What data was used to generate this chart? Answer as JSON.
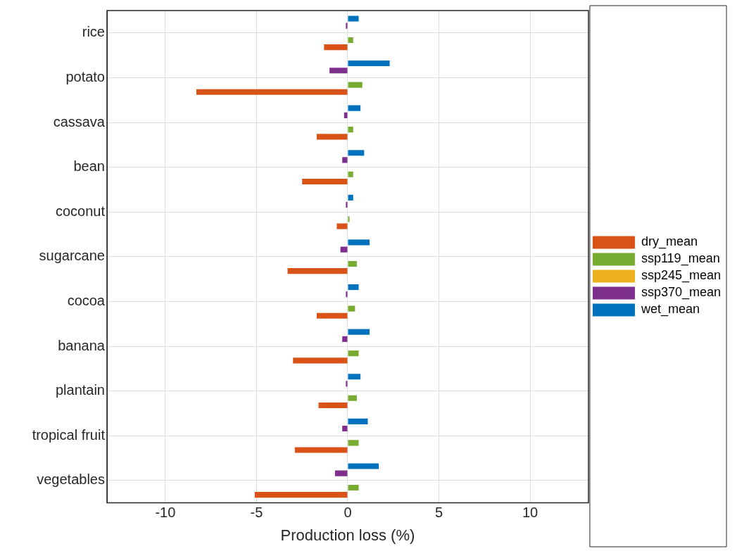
{
  "chart_data": {
    "type": "bar",
    "orientation": "horizontal",
    "xlabel": "Production loss (%)",
    "categories": [
      "rice",
      "potato",
      "cassava",
      "bean",
      "coconut",
      "sugarcane",
      "cocoa",
      "banana",
      "plantain",
      "tropical fruit",
      "vegetables"
    ],
    "series": [
      {
        "name": "dry_mean",
        "color": "#d95319",
        "values": [
          -1.3,
          -8.3,
          -1.7,
          -2.5,
          -0.6,
          -3.3,
          -1.7,
          -3.0,
          -1.6,
          -2.9,
          -5.1
        ]
      },
      {
        "name": "ssp119_mean",
        "color": "#77ac30",
        "values": [
          0.3,
          0.8,
          0.3,
          0.3,
          0.1,
          0.5,
          0.4,
          0.6,
          0.5,
          0.6,
          0.6
        ]
      },
      {
        "name": "ssp245_mean",
        "color": "#edb120",
        "values": [
          0,
          0,
          0,
          0,
          0,
          0,
          0,
          0,
          0,
          0,
          0
        ]
      },
      {
        "name": "ssp370_mean",
        "color": "#7e2f8e",
        "values": [
          -0.1,
          -1.0,
          -0.2,
          -0.3,
          -0.1,
          -0.4,
          -0.1,
          -0.3,
          -0.1,
          -0.3,
          -0.7
        ]
      },
      {
        "name": "wet_mean",
        "color": "#0072bd",
        "values": [
          0.6,
          2.3,
          0.7,
          0.9,
          0.3,
          1.2,
          0.6,
          1.2,
          0.7,
          1.1,
          1.7
        ]
      }
    ],
    "xlim": [
      -13.2,
      13.2
    ],
    "xticks": [
      -10,
      -5,
      0,
      5,
      10
    ],
    "grid": true,
    "legend": "right"
  }
}
